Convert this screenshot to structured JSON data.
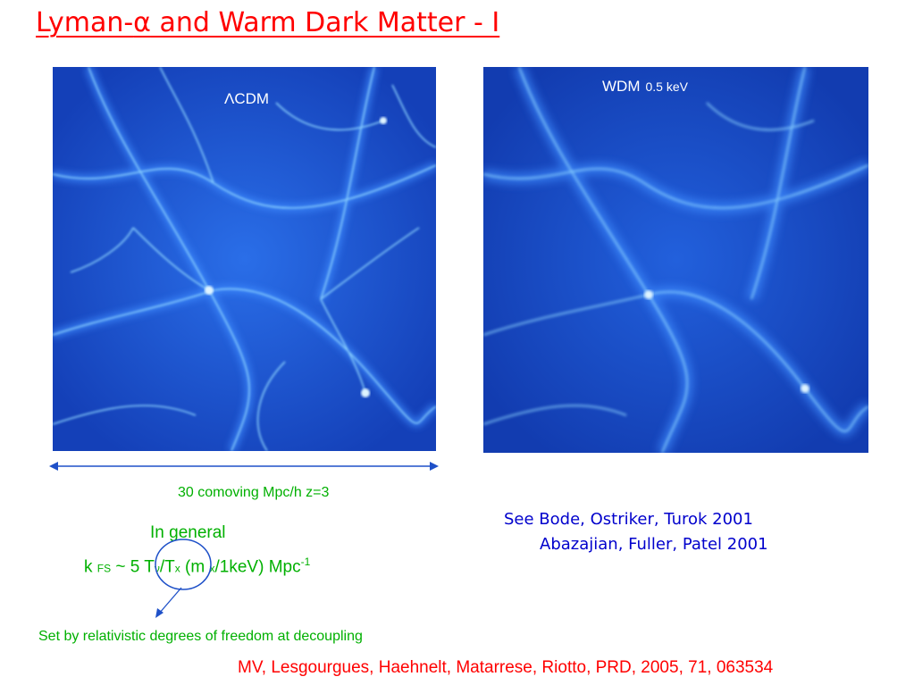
{
  "title": {
    "prefix": "Lyman-",
    "greek": "α",
    "suffix": " and Warm Dark Matter - I"
  },
  "panels": {
    "lcdm": {
      "label_symbol": "Λ",
      "label_text": "CDM",
      "image": "cosmic-web-simulation-lcdm"
    },
    "wdm": {
      "label_text": "WDM",
      "label_energy": "0.5 keV",
      "image": "cosmic-web-simulation-wdm"
    }
  },
  "scale": {
    "text": "30 comoving Mpc/h  z=3"
  },
  "general": {
    "label": "In general"
  },
  "formula": {
    "k": "k ",
    "fs": "FS",
    "approx": " ~ 5 ",
    "T": "T",
    "nu": "ν",
    "slash": "/T",
    "x1": "x",
    "mass": " (m ",
    "x2": "x",
    "unit": "/1keV) Mpc",
    "exp": "-1"
  },
  "annotation": {
    "text": "Set by relativistic degrees of freedom at decoupling"
  },
  "references": {
    "line1": "See Bode, Ostriker, Turok 2001",
    "line2": "Abazajian, Fuller, Patel 2001"
  },
  "citation": {
    "text": "MV, Lesgourgues, Haehnelt, Matarrese, Riotto,  PRD,  2005, 71, 063534"
  },
  "colors": {
    "title": "#ff0000",
    "panel_bg": "#1646c8",
    "filament": "#7fd0ff",
    "green_text": "#00b000",
    "reference_text": "#0000cc",
    "arrow": "#1e50c8"
  }
}
